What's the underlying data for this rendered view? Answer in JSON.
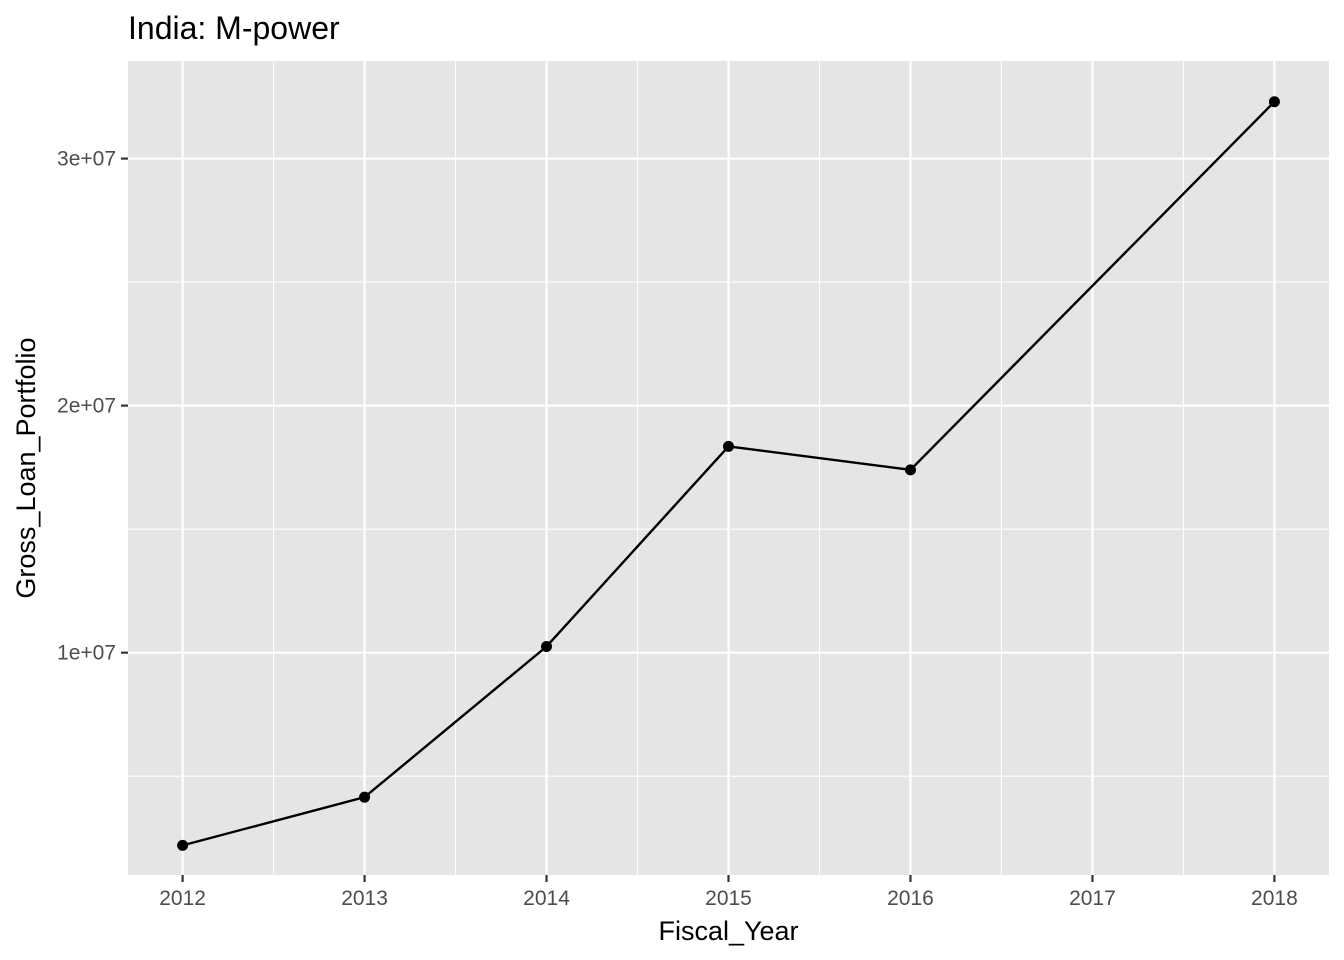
{
  "chart_data": {
    "type": "line",
    "title": "India:  M-power",
    "xlabel": "Fiscal_Year",
    "ylabel": "Gross_Loan_Portfolio",
    "x": [
      2012,
      2013,
      2014,
      2015,
      2016,
      2018
    ],
    "series": [
      {
        "values": [
          2200000,
          4150000,
          10250000,
          18350000,
          17400000,
          32300000
        ]
      }
    ],
    "x_ticks": [
      "2012",
      "2013",
      "2014",
      "2015",
      "2016",
      "2017",
      "2018"
    ],
    "y_ticks": [
      {
        "value": 10000000,
        "label": "1e+07"
      },
      {
        "value": 20000000,
        "label": "2e+07"
      },
      {
        "value": 30000000,
        "label": "3e+07"
      }
    ],
    "xlim": [
      2011.7,
      2018.3
    ],
    "ylim": [
      1000000,
      33950000
    ],
    "grid": true,
    "colors": {
      "panel_background": "#e5e5e5",
      "grid": "#ffffff",
      "series": "#000000"
    }
  }
}
